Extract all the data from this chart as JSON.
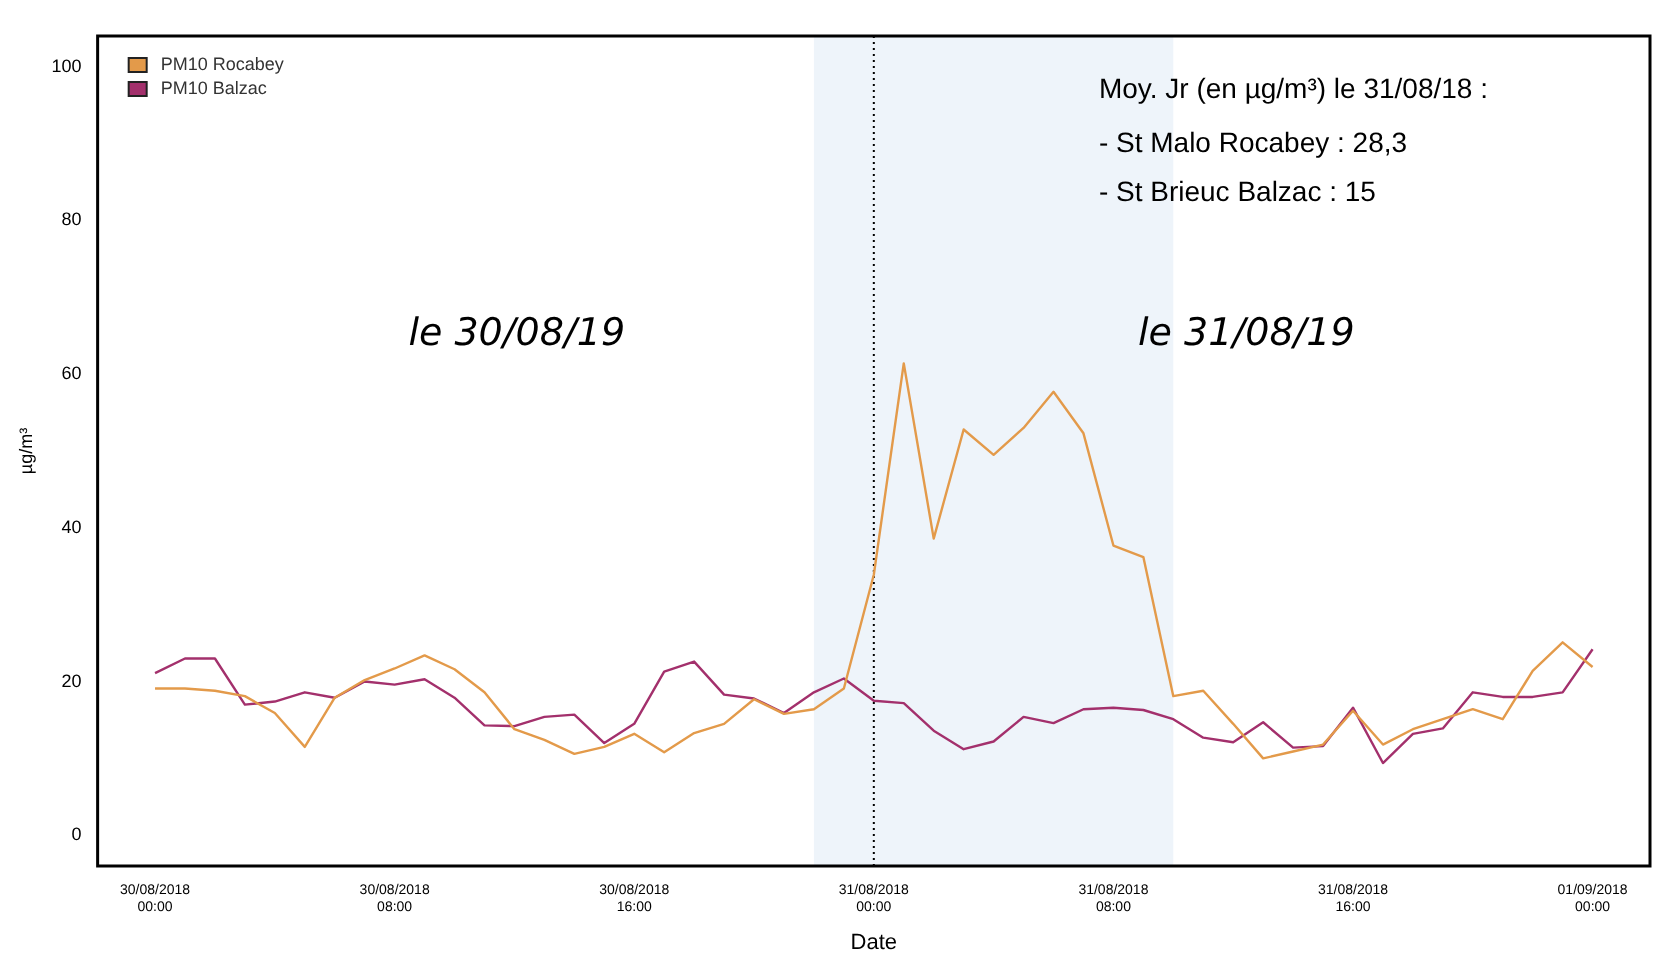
{
  "chart_data": {
    "type": "line",
    "xlabel": "Date",
    "ylabel": "µg/m³",
    "x": [
      "2018-08-30T00:00",
      "2018-08-30T01:00",
      "2018-08-30T02:00",
      "2018-08-30T03:00",
      "2018-08-30T04:00",
      "2018-08-30T05:00",
      "2018-08-30T06:00",
      "2018-08-30T07:00",
      "2018-08-30T08:00",
      "2018-08-30T09:00",
      "2018-08-30T10:00",
      "2018-08-30T11:00",
      "2018-08-30T12:00",
      "2018-08-30T13:00",
      "2018-08-30T14:00",
      "2018-08-30T15:00",
      "2018-08-30T16:00",
      "2018-08-30T17:00",
      "2018-08-30T18:00",
      "2018-08-30T19:00",
      "2018-08-30T20:00",
      "2018-08-30T21:00",
      "2018-08-30T22:00",
      "2018-08-30T23:00",
      "2018-08-31T00:00",
      "2018-08-31T01:00",
      "2018-08-31T02:00",
      "2018-08-31T03:00",
      "2018-08-31T04:00",
      "2018-08-31T05:00",
      "2018-08-31T06:00",
      "2018-08-31T07:00",
      "2018-08-31T08:00",
      "2018-08-31T09:00",
      "2018-08-31T10:00",
      "2018-08-31T11:00",
      "2018-08-31T12:00",
      "2018-08-31T13:00",
      "2018-08-31T14:00",
      "2018-08-31T15:00",
      "2018-08-31T16:00",
      "2018-08-31T17:00",
      "2018-08-31T18:00",
      "2018-08-31T19:00",
      "2018-08-31T20:00",
      "2018-08-31T21:00",
      "2018-08-31T22:00",
      "2018-08-31T23:00",
      "2018-09-01T00:00"
    ],
    "series": [
      {
        "name": "PM10 Rocabey",
        "color": "#e39a4a",
        "values": [
          19.1,
          19.1,
          18.8,
          18.1,
          15.9,
          11.5,
          17.9,
          20.2,
          21.7,
          23.4,
          21.6,
          18.6,
          13.8,
          12.4,
          10.6,
          11.5,
          13.2,
          10.8,
          13.3,
          14.5,
          17.7,
          15.8,
          16.4,
          19.1,
          33.9,
          61.4,
          38.6,
          52.8,
          49.5,
          53.0,
          57.7,
          52.3,
          37.7,
          36.2,
          18.1,
          18.8,
          14.5,
          10.0,
          10.9,
          11.8,
          16.2,
          11.8,
          13.8,
          15.1,
          16.4,
          15.1,
          21.4,
          25.1,
          21.9
        ]
      },
      {
        "name": "PM10 Balzac",
        "color": "#a3306c",
        "values": [
          21.1,
          23.0,
          23.0,
          17.0,
          17.4,
          18.6,
          17.9,
          20.0,
          19.6,
          20.3,
          17.9,
          14.3,
          14.2,
          15.4,
          15.7,
          12.0,
          14.5,
          21.3,
          22.6,
          18.3,
          17.8,
          15.9,
          18.6,
          20.4,
          17.5,
          17.2,
          13.6,
          11.2,
          12.2,
          15.4,
          14.6,
          16.4,
          16.6,
          16.3,
          15.1,
          12.7,
          12.1,
          14.7,
          11.4,
          11.6,
          16.6,
          9.4,
          13.2,
          13.9,
          18.6,
          18.0,
          18.0,
          18.6,
          24.2
        ]
      }
    ],
    "xlim": [
      "2018-08-29T22:05",
      "2018-09-01T01:55"
    ],
    "xticks": [
      {
        "value": "2018-08-30T00:00",
        "label": "30/08/2018 00:00"
      },
      {
        "value": "2018-08-30T08:00",
        "label": "30/08/2018 08:00"
      },
      {
        "value": "2018-08-30T16:00",
        "label": "30/08/2018 16:00"
      },
      {
        "value": "2018-08-31T00:00",
        "label": "31/08/2018 00:00"
      },
      {
        "value": "2018-08-31T08:00",
        "label": "31/08/2018 08:00"
      },
      {
        "value": "2018-08-31T16:00",
        "label": "31/08/2018 16:00"
      },
      {
        "value": "2018-09-01T00:00",
        "label": "01/09/2018 00:00"
      }
    ],
    "ylim": [
      -4,
      104
    ],
    "yticks": [
      0,
      20,
      40,
      60,
      80,
      100
    ],
    "bands": [
      {
        "axis": "x",
        "from": "2018-08-30T22:00",
        "to": "2018-08-31T10:00",
        "color": "#eef4fa"
      }
    ],
    "ref_lines": [
      {
        "axis": "x",
        "value": "2018-08-31T00:00",
        "color": "#000000",
        "line_style": "dotted"
      }
    ],
    "annotations": [
      "le 30/08/19",
      "le 31/08/19",
      "Moy. Jr (en µg/m³) le 31/08/18 :",
      "- St Malo Rocabey : 28,3",
      "- St Brieuc Balzac : 15"
    ],
    "legend": "top left",
    "grid": false,
    "marker": "none",
    "line_style": "solid"
  }
}
